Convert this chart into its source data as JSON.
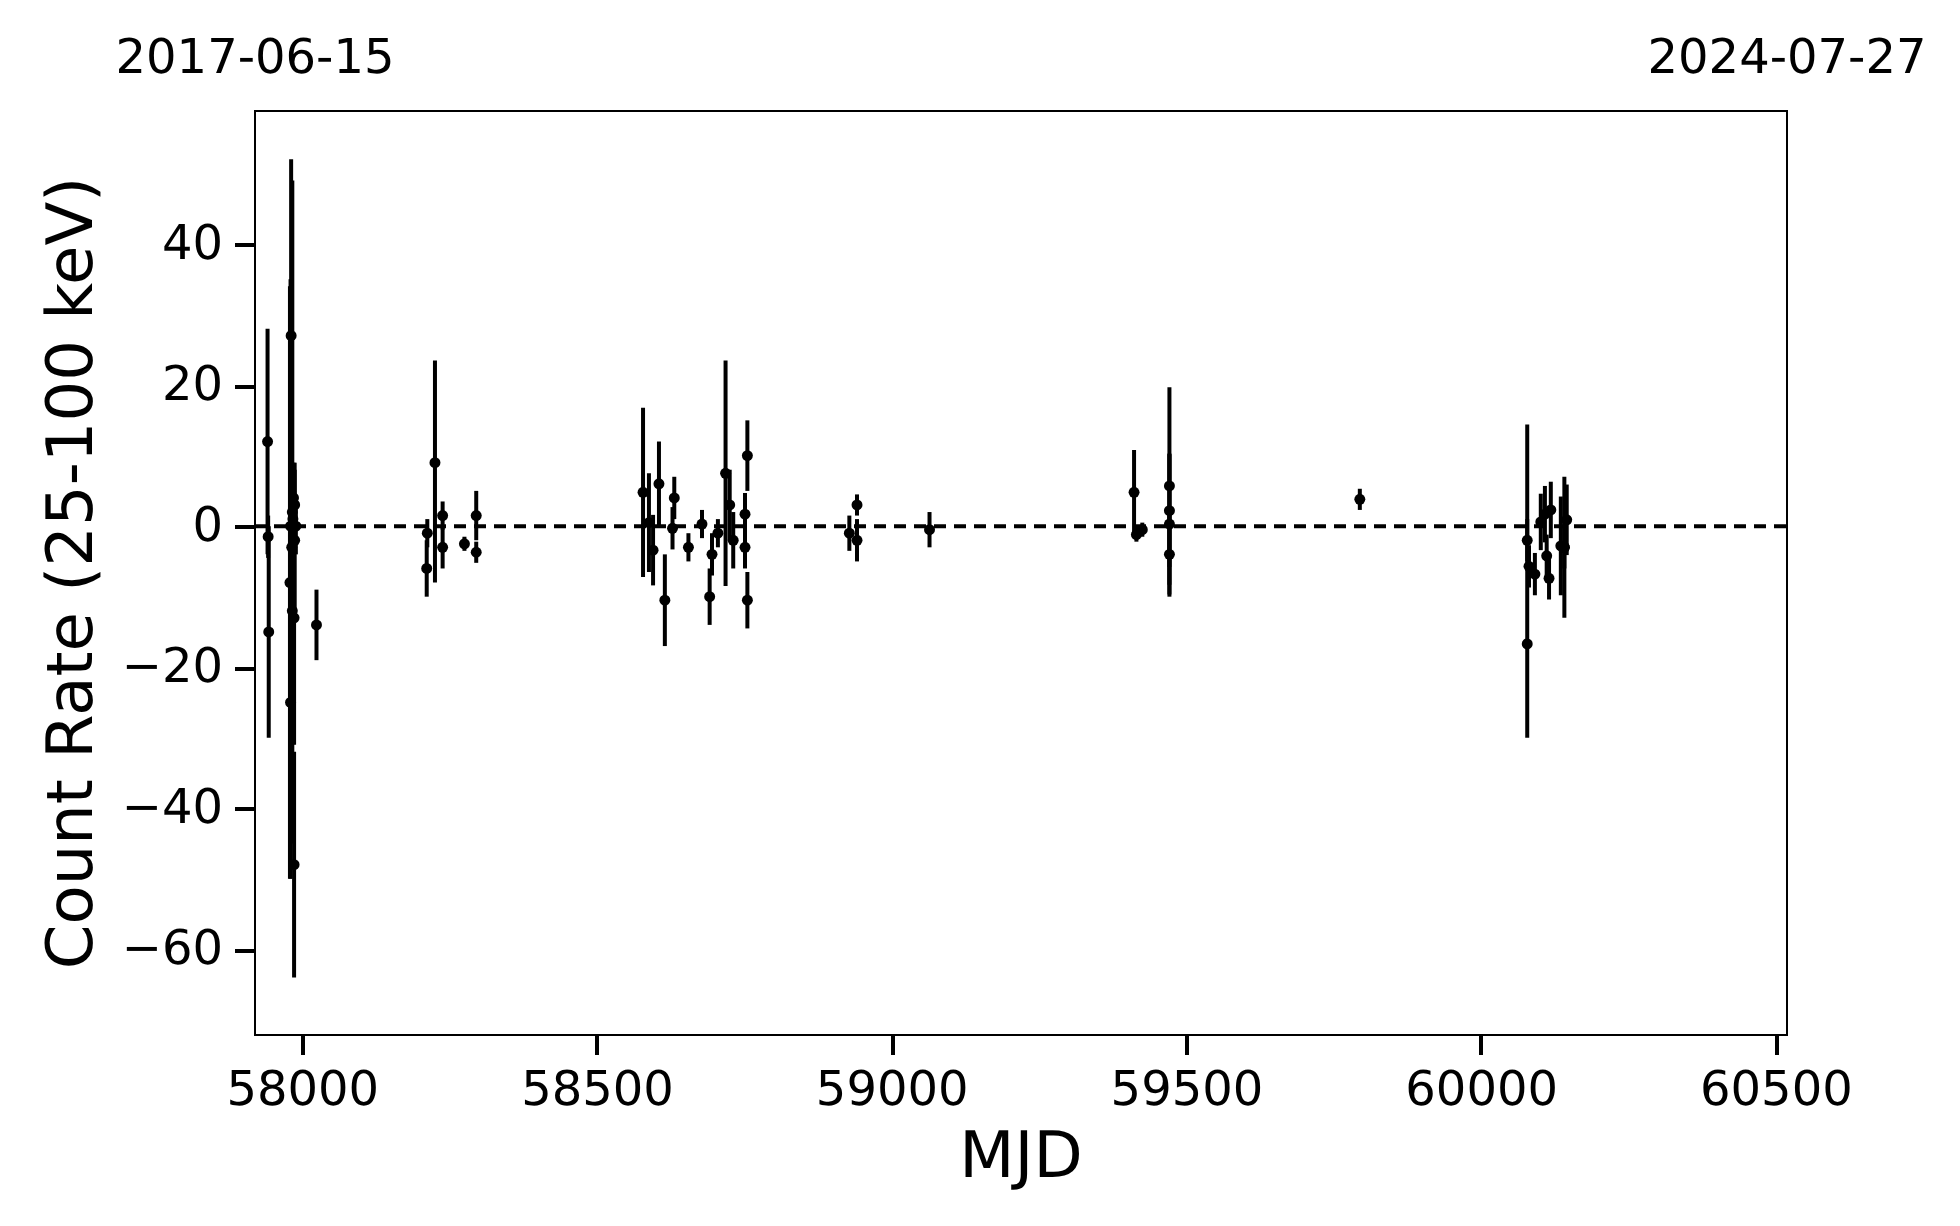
{
  "chart_data": {
    "type": "scatter",
    "xlabel": "MJD",
    "ylabel": "Count Rate (25-100 keV)",
    "xlim": [
      57919,
      60518
    ],
    "xticks": [
      58000,
      58500,
      59000,
      59500,
      60000,
      60500
    ],
    "x2lim": [
      "2017-06-15",
      "2024-07-27"
    ],
    "x2ticks": [
      "2017-06-15",
      "2024-07-27"
    ],
    "ylim": [
      -72,
      59
    ],
    "yticks": [
      {
        "value": -60,
        "label": "−60"
      },
      {
        "value": -40,
        "label": "−40"
      },
      {
        "value": -20,
        "label": "−20"
      },
      0,
      20,
      40
    ],
    "grid": false,
    "marker": "circle",
    "ref_lines": [
      {
        "axis": "y",
        "value": 0,
        "color": "#000000",
        "line_style": "dashed"
      }
    ],
    "series": [
      {
        "color": "#000000",
        "x": [
          57942,
          57943,
          57944,
          57982,
          57984,
          57987,
          57981,
          57980,
          57983,
          57985,
          57986,
          57988,
          57984,
          57990,
          57988,
          57981,
          57987,
          58025,
          58226,
          58212,
          58213,
          58239,
          58239,
          58276,
          58296,
          58296,
          58579,
          58589,
          58596,
          58616,
          58606,
          58632,
          58629,
          58656,
          58679,
          58692,
          58696,
          58706,
          58719,
          58726,
          58732,
          58756,
          58756,
          58752,
          58752,
          58929,
          58942,
          58942,
          59065,
          59412,
          59416,
          59426,
          59472,
          59472,
          59472,
          59472,
          59795,
          60079,
          60079,
          60082,
          60092,
          60102,
          60109,
          60112,
          60116,
          60119,
          60136,
          60146,
          60142,
          60142
        ],
        "values": [
          12,
          -1.5,
          -15,
          27,
          2,
          -48,
          -25,
          -8,
          -3,
          1,
          4,
          -2,
          -12,
          0,
          3,
          0,
          -13,
          -14,
          9,
          -6,
          -1,
          -3,
          1.5,
          -2.5,
          1.5,
          -3.7,
          4.8,
          0.5,
          -3.4,
          -10.5,
          6,
          4,
          -0.3,
          -3,
          0.3,
          -10,
          -4,
          -1,
          7.5,
          3,
          -2,
          10,
          -10.5,
          1.7,
          -3,
          -1,
          3,
          -2,
          -0.5,
          4.8,
          -1.2,
          -0.5,
          5.7,
          2.2,
          0.3,
          -4,
          3.8,
          -16.7,
          -2,
          -5.7,
          -6.8,
          0.6,
          1.7,
          -4.2,
          -7.4,
          2.3,
          -2.8,
          0.9,
          -3,
          -3
        ],
        "errors": [
          16,
          3,
          15,
          25,
          47,
          16,
          25,
          42,
          8,
          6,
          5,
          10,
          19,
          4,
          6,
          35,
          18,
          5,
          [
            -8,
            23.5
          ],
          4,
          2,
          3,
          2,
          1,
          3.5,
          1.5,
          12,
          7,
          5,
          6.5,
          6,
          3,
          3,
          2,
          2,
          4,
          3,
          2,
          16,
          5,
          4,
          5,
          4,
          3,
          3,
          2.5,
          1.5,
          3,
          2.5,
          6,
          1,
          1,
          14,
          8,
          10,
          6,
          1.5,
          [
            -30,
            14.4
          ],
          3,
          3,
          3,
          4,
          4,
          3,
          3,
          4,
          7,
          5,
          10,
          3
        ]
      }
    ]
  }
}
